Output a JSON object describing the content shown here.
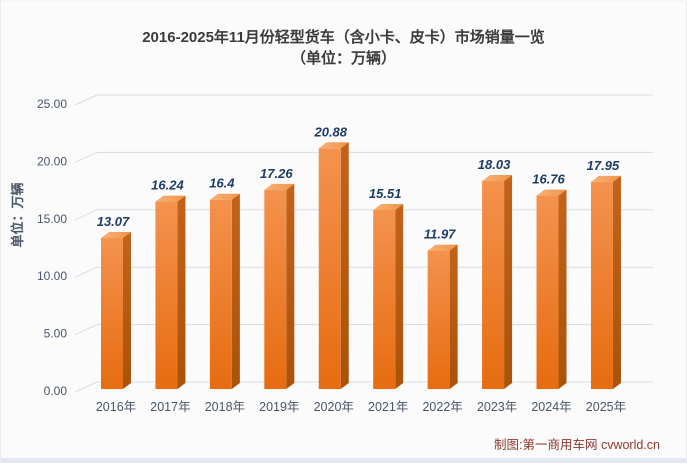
{
  "footer": {
    "credit": "制图:第一商用车网 cvworld.cn"
  },
  "chart_data": {
    "type": "bar",
    "style": "3d-column",
    "title": "2016-2025年11月份轻型货车（含小卡、皮卡）市场销量一览",
    "subtitle": "（单位：万辆）",
    "categories": [
      "2016年",
      "2017年",
      "2018年",
      "2019年",
      "2020年",
      "2021年",
      "2022年",
      "2023年",
      "2024年",
      "2025年"
    ],
    "values": [
      13.07,
      16.24,
      16.4,
      17.26,
      20.88,
      15.51,
      11.97,
      18.03,
      16.76,
      17.95
    ],
    "xlabel": "",
    "ylabel": "单位：万辆",
    "ylim": [
      0,
      25
    ],
    "yticks": [
      0,
      5,
      10,
      15,
      20,
      25
    ],
    "ytick_decimals": 2,
    "grid": true,
    "legend": false,
    "colors": {
      "bar_front_top": "#f4924e",
      "bar_front_bottom": "#e66c10",
      "bar_side_top": "#c3631a",
      "bar_side_bottom": "#a85309",
      "bar_top_light": "#f8b276",
      "bar_top": "#ef9449",
      "grid": "#d8dce3",
      "axis_text": "#4a5568",
      "value_label": "#1f3c64",
      "title_text": "#3b3b3b",
      "credit_text": "#8b3a30",
      "bottom_strip": "#e2e8ef"
    }
  }
}
